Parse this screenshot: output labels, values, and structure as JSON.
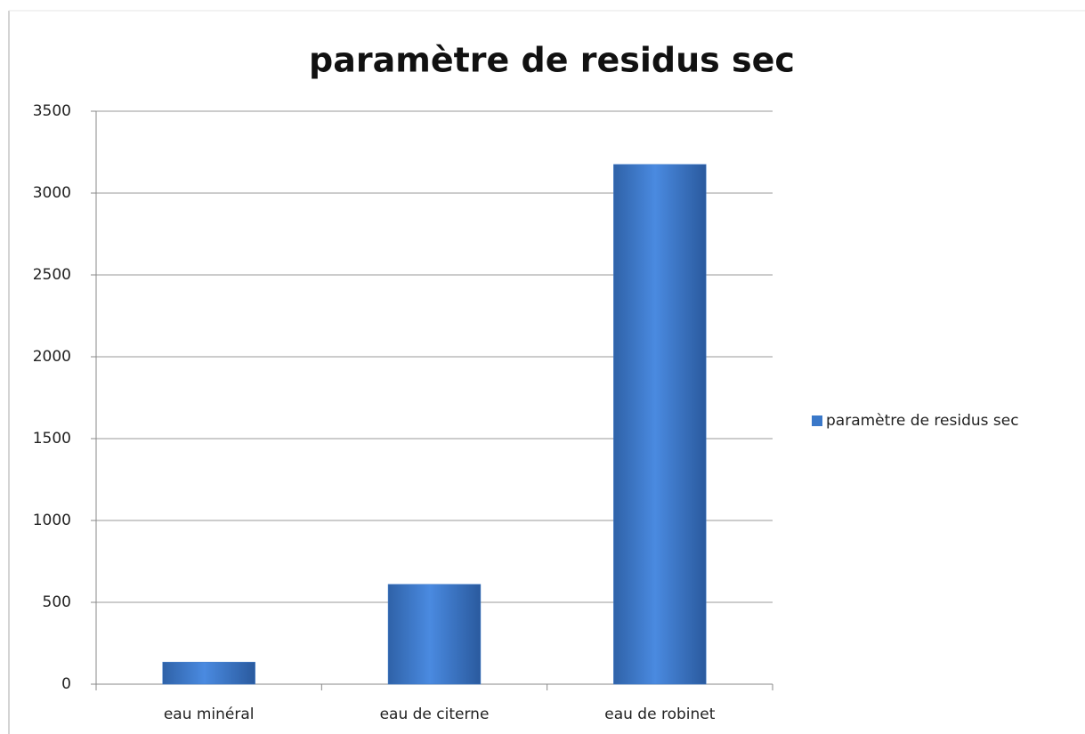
{
  "chart_data": {
    "type": "bar",
    "title": "paramètre de residus sec",
    "categories": [
      "eau minéral",
      "eau de citerne",
      "eau de robinet"
    ],
    "series": [
      {
        "name": "paramètre de residus sec",
        "color": "#3a78c9",
        "values": [
          135,
          610,
          3175
        ]
      }
    ],
    "ylim": [
      0,
      3500
    ],
    "yticks": [
      0,
      500,
      1000,
      1500,
      2000,
      2500,
      3000,
      3500
    ],
    "grid": true,
    "legend": "right"
  }
}
